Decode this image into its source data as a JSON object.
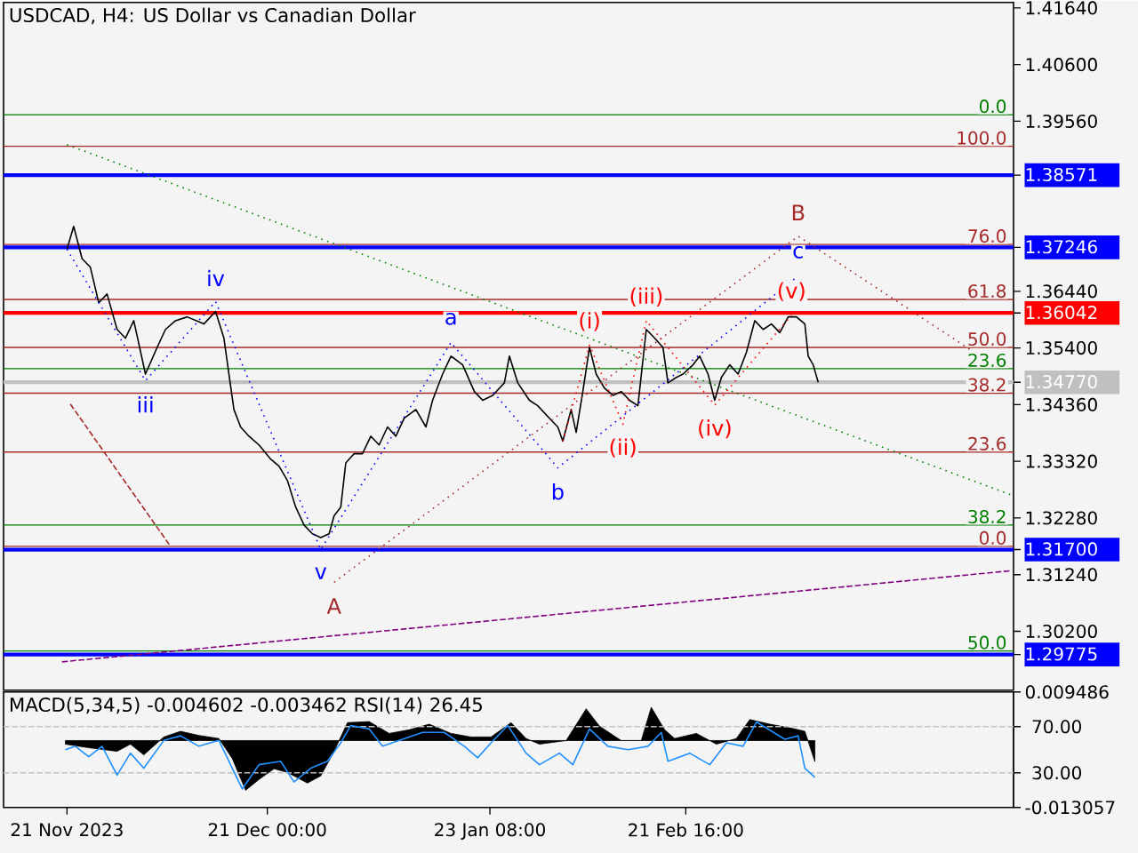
{
  "chart_data": [
    {
      "type": "line",
      "title": "USDCAD, H4:  US Dollar vs Canadian Dollar",
      "xlim": [
        "2023-11-11T12:00",
        "2024-04-10T18:00"
      ],
      "ylim": [
        1.2912,
        1.4174
      ],
      "tick_labels": "y",
      "yticks": [
        {
          "value": 1.29775,
          "label": "1.29775"
        },
        {
          "value": 1.302,
          "label": "1.30200"
        },
        {
          "value": 1.3124,
          "label": "1.31240"
        },
        {
          "value": 1.317,
          "label": "1.31700"
        },
        {
          "value": 1.3228,
          "label": "1.32280"
        },
        {
          "value": 1.3332,
          "label": "1.33320"
        },
        {
          "value": 1.3436,
          "label": "1.34360"
        },
        {
          "value": 1.3477,
          "label": "1.34770"
        },
        {
          "value": 1.354,
          "label": "1.35400"
        },
        {
          "value": 1.36042,
          "label": "1.36042"
        },
        {
          "value": 1.3644,
          "label": "1.36440"
        },
        {
          "value": 1.37246,
          "label": "1.37246"
        },
        {
          "value": 1.38571,
          "label": "1.38571"
        },
        {
          "value": 1.3956,
          "label": "1.39560"
        },
        {
          "value": 1.406,
          "label": "1.40600"
        },
        {
          "value": 1.4164,
          "label": "1.41640"
        }
      ],
      "series": [
        {
          "color": "#000000",
          "line_style": "solid",
          "x": [
            "2023-11-21T00:00",
            "2023-11-22T00:00",
            "2023-11-23T06:00",
            "2023-11-24T12:00",
            "2023-11-25T18:00",
            "2023-11-27T00:00",
            "2023-11-28T12:00",
            "2023-11-29T18:00",
            "2023-12-01T00:00",
            "2023-12-02T18:00",
            "2023-12-04T12:00",
            "2023-12-05T18:00",
            "2023-12-07T06:00",
            "2023-12-09T00:00",
            "2023-12-11T12:00",
            "2023-12-13T06:00",
            "2023-12-14T12:00",
            "2023-12-15T06:00",
            "2023-12-16T00:00",
            "2023-12-17T00:00",
            "2023-12-18T06:00",
            "2023-12-19T18:00",
            "2023-12-21T12:00",
            "2023-12-22T18:00",
            "2023-12-24T00:00",
            "2023-12-25T06:00",
            "2023-12-26T12:00",
            "2023-12-27T18:00",
            "2023-12-29T00:00",
            "2023-12-30T06:00",
            "2023-12-31T00:00",
            "2024-01-01T00:00",
            "2024-01-01T18:00",
            "2024-01-03T00:00",
            "2024-01-04T06:00",
            "2024-01-05T12:00",
            "2024-01-06T18:00",
            "2024-01-08T00:00",
            "2024-01-09T06:00",
            "2024-01-10T12:00",
            "2024-01-12T06:00",
            "2024-01-13T18:00",
            "2024-01-14T18:00",
            "2024-01-16T06:00",
            "2024-01-17T12:00",
            "2024-01-19T06:00",
            "2024-01-21T00:00",
            "2024-01-22T06:00",
            "2024-01-23T18:00",
            "2024-01-25T12:00",
            "2024-01-26T06:00",
            "2024-01-27T12:00",
            "2024-01-29T06:00",
            "2024-01-30T12:00",
            "2024-02-01T06:00",
            "2024-02-02T12:00",
            "2024-02-03T06:00",
            "2024-02-04T12:00",
            "2024-02-05T06:00",
            "2024-02-06T06:00",
            "2024-02-07T06:00",
            "2024-02-08T06:00",
            "2024-02-09T12:00",
            "2024-02-10T18:00",
            "2024-02-12T00:00",
            "2024-02-13T06:00",
            "2024-02-14T12:00",
            "2024-02-15T18:00",
            "2024-02-17T00:00",
            "2024-02-18T06:00",
            "2024-02-19T00:00",
            "2024-02-20T06:00",
            "2024-02-21T06:00",
            "2024-02-22T18:00",
            "2024-02-23T18:00",
            "2024-02-25T00:00",
            "2024-02-26T00:00",
            "2024-02-27T00:00",
            "2024-02-28T06:00",
            "2024-02-29T12:00",
            "2024-03-01T18:00",
            "2024-03-03T00:00",
            "2024-03-04T06:00",
            "2024-03-05T12:00",
            "2024-03-06T18:00",
            "2024-03-08T00:00",
            "2024-03-09T06:00",
            "2024-03-10T12:00",
            "2024-03-11T00:00",
            "2024-03-11T18:00",
            "2024-03-12T12:00"
          ],
          "values": [
            1.3721,
            1.3763,
            1.3704,
            1.3688,
            1.3623,
            1.3639,
            1.3574,
            1.3558,
            1.359,
            1.3492,
            1.3541,
            1.3574,
            1.359,
            1.3597,
            1.3584,
            1.3607,
            1.3558,
            1.3492,
            1.3427,
            1.3395,
            1.3378,
            1.3362,
            1.3336,
            1.3323,
            1.3297,
            1.3248,
            1.3215,
            1.3199,
            1.3192,
            1.3199,
            1.3232,
            1.3248,
            1.3329,
            1.3346,
            1.3346,
            1.3378,
            1.3362,
            1.3395,
            1.3378,
            1.3411,
            1.3427,
            1.3395,
            1.3444,
            1.3492,
            1.3525,
            1.3509,
            1.346,
            1.3444,
            1.3453,
            1.3476,
            1.3525,
            1.3476,
            1.3444,
            1.3434,
            1.3411,
            1.3395,
            1.3369,
            1.3427,
            1.3385,
            1.346,
            1.3541,
            1.3492,
            1.3466,
            1.3453,
            1.346,
            1.3444,
            1.3434,
            1.3574,
            1.3558,
            1.3541,
            1.3476,
            1.3486,
            1.3492,
            1.3509,
            1.3525,
            1.3492,
            1.3444,
            1.3486,
            1.3509,
            1.3492,
            1.3532,
            1.359,
            1.3574,
            1.3584,
            1.3568,
            1.3597,
            1.3597,
            1.3584,
            1.3525,
            1.3509,
            1.3477
          ]
        },
        {
          "color": "#008000",
          "line_style": "dotted",
          "x": [
            "2023-11-21T00:00",
            "2024-04-10T06:00"
          ],
          "values": [
            1.3913,
            1.3271
          ]
        },
        {
          "color": "#800080",
          "line_style": "dashed",
          "x": [
            "2023-11-20T06:00",
            "2024-04-10T06:00"
          ],
          "values": [
            1.2964,
            1.3131
          ]
        },
        {
          "color": "#a52a2a",
          "line_style": "dashed",
          "x": [
            "2023-11-21T12:00",
            "2023-12-06T12:00"
          ],
          "values": [
            1.3437,
            1.3176
          ]
        },
        {
          "color": "#0000ff",
          "line_style": "dotted",
          "x": [
            "2023-11-21T00:00",
            "2023-12-02T18:00",
            "2023-12-13T06:00",
            "2023-12-29T00:00",
            "2024-01-17T12:00",
            "2024-02-02T12:00",
            "2024-03-09T12:00"
          ],
          "values": [
            1.3721,
            1.348,
            1.3625,
            1.317,
            1.355,
            1.332,
            1.3672
          ]
        },
        {
          "color": "#ff0000",
          "line_style": "dotted",
          "x": [
            "2024-02-03T06:00",
            "2024-02-07T06:00",
            "2024-02-12T06:00",
            "2024-02-15T18:00",
            "2024-02-26T00:00",
            "2024-03-08T12:00"
          ],
          "values": [
            1.3369,
            1.3545,
            1.34,
            1.359,
            1.3435,
            1.36
          ]
        },
        {
          "color": "#a52a2a",
          "line_style": "dotted",
          "x": [
            "2023-12-31T00:00",
            "2024-03-09T12:00",
            "2024-04-04T12:00"
          ],
          "values": [
            1.311,
            1.3745,
            1.3535
          ]
        }
      ],
      "ref_lines": [
        {
          "axis": "y",
          "value": 1.3968,
          "color": "#008000"
        },
        {
          "axis": "y",
          "value": 1.391,
          "color": "#a52a2a"
        },
        {
          "axis": "y",
          "value": 1.373,
          "color": "#a52a2a"
        },
        {
          "axis": "y",
          "value": 1.3629,
          "color": "#a52a2a"
        },
        {
          "axis": "y",
          "value": 1.3541,
          "color": "#a52a2a"
        },
        {
          "axis": "y",
          "value": 1.3502,
          "color": "#008000"
        },
        {
          "axis": "y",
          "value": 1.3457,
          "color": "#a52a2a"
        },
        {
          "axis": "y",
          "value": 1.3349,
          "color": "#a52a2a"
        },
        {
          "axis": "y",
          "value": 1.3215,
          "color": "#008000"
        },
        {
          "axis": "y",
          "value": 1.3176,
          "color": "#a52a2a"
        },
        {
          "axis": "y",
          "value": 1.2984,
          "color": "#008000"
        },
        {
          "axis": "y",
          "value": 1.3477,
          "color": "#c0c0c0"
        },
        {
          "axis": "y",
          "value": 1.38571,
          "color": "#0000ff"
        },
        {
          "axis": "y",
          "value": 1.37246,
          "color": "#0000ff"
        },
        {
          "axis": "y",
          "value": 1.36042,
          "color": "#ff0000"
        },
        {
          "axis": "y",
          "value": 1.317,
          "color": "#0000ff"
        },
        {
          "axis": "y",
          "value": 1.29775,
          "color": "#0000ff"
        }
      ],
      "annotations": [
        {
          "text": "0.0",
          "x": "2024-04-10T00:00",
          "y": 1.3968
        },
        {
          "text": "100.0",
          "x": "2024-04-10T00:00",
          "y": 1.391
        },
        {
          "text": "76.0",
          "x": "2024-04-10T00:00",
          "y": 1.373
        },
        {
          "text": "61.8",
          "x": "2024-04-10T00:00",
          "y": 1.3629
        },
        {
          "text": "50.0",
          "x": "2024-04-10T00:00",
          "y": 1.3541
        },
        {
          "text": "23.6",
          "x": "2024-04-10T00:00",
          "y": 1.3502
        },
        {
          "text": "38.2",
          "x": "2024-04-10T00:00",
          "y": 1.3457
        },
        {
          "text": "23.6",
          "x": "2024-04-10T00:00",
          "y": 1.3349
        },
        {
          "text": "38.2",
          "x": "2024-04-10T00:00",
          "y": 1.3215
        },
        {
          "text": "0.0",
          "x": "2024-04-10T00:00",
          "y": 1.3176
        },
        {
          "text": "50.0",
          "x": "2024-04-10T00:00",
          "y": 1.2984
        },
        {
          "text": "iii",
          "x": "2023-12-02T18:00",
          "y": 1.348
        },
        {
          "text": "iv",
          "x": "2023-12-13T06:00",
          "y": 1.3625
        },
        {
          "text": "v",
          "x": "2023-12-29T00:00",
          "y": 1.317
        },
        {
          "text": "A",
          "x": "2023-12-31T00:00",
          "y": 1.311
        },
        {
          "text": "a",
          "x": "2024-01-17T12:00",
          "y": 1.355
        },
        {
          "text": "b",
          "x": "2024-02-02T12:00",
          "y": 1.332
        },
        {
          "text": "(i)",
          "x": "2024-02-07T06:00",
          "y": 1.3545
        },
        {
          "text": "(ii)",
          "x": "2024-02-12T06:00",
          "y": 1.34
        },
        {
          "text": "(iii)",
          "x": "2024-02-15T18:00",
          "y": 1.359
        },
        {
          "text": "(iv)",
          "x": "2024-02-26T00:00",
          "y": 1.3435
        },
        {
          "text": "(v)",
          "x": "2024-03-08T12:00",
          "y": 1.36
        },
        {
          "text": "c",
          "x": "2024-03-09T12:00",
          "y": 1.3672
        },
        {
          "text": "B",
          "x": "2024-03-09T12:00",
          "y": 1.3745
        }
      ]
    },
    {
      "type": "area",
      "title": "MACD(5,34,5) -0.004602 -0.003462 RSI(14) 26.45",
      "xlim": [
        "2023-11-11T12:00",
        "2024-04-10T18:00"
      ],
      "xticks": [
        {
          "value": "2023-11-21T00:00",
          "label": "21 Nov 2023"
        },
        {
          "value": "2023-12-21T00:00",
          "label": "21 Dec 00:00"
        },
        {
          "value": "2024-01-23T08:00",
          "label": "23 Jan 08:00"
        },
        {
          "value": "2024-02-21T16:00",
          "label": "21 Feb 16:00"
        }
      ],
      "ylim": [
        -0.013057,
        0.009486
      ],
      "yticks": [
        -0.013057,
        0.009486
      ],
      "y2lim": [
        0,
        100
      ],
      "y2ticks": [
        {
          "value": 30,
          "label": "30.00"
        },
        {
          "value": 70,
          "label": "70.00"
        }
      ],
      "series": [
        {
          "color": "#000000",
          "x": [
            "2023-11-20T18:00",
            "2023-11-24T06:00",
            "2023-11-28T12:00",
            "2023-11-30T12:00",
            "2023-12-02T12:00",
            "2023-12-05T12:00",
            "2023-12-08T00:00",
            "2023-12-10T18:00",
            "2023-12-13T18:00",
            "2023-12-15T18:00",
            "2023-12-17T18:00",
            "2023-12-19T18:00",
            "2023-12-22T00:00",
            "2023-12-24T00:00",
            "2023-12-27T00:00",
            "2023-12-29T00:00",
            "2023-12-31T00:00",
            "2024-01-02T00:00",
            "2024-01-05T06:00",
            "2024-01-08T06:00",
            "2024-01-11T06:00",
            "2024-01-14T06:00",
            "2024-01-17T12:00",
            "2024-01-20T12:00",
            "2024-01-23T12:00",
            "2024-01-26T12:00",
            "2024-01-28T18:00",
            "2024-01-30T18:00",
            "2024-02-03T18:00",
            "2024-02-06T18:00",
            "2024-02-08T18:00",
            "2024-02-12T00:00",
            "2024-02-15T00:00",
            "2024-02-16T12:00",
            "2024-02-18T12:00",
            "2024-02-20T00:00",
            "2024-02-23T06:00",
            "2024-02-26T06:00",
            "2024-02-29T06:00",
            "2024-03-02T06:00",
            "2024-03-05T06:00",
            "2024-03-08T12:00",
            "2024-03-10T12:00",
            "2024-03-12T00:00"
          ],
          "values": [
            -0.0007,
            -0.0014,
            -0.0021,
            -0.0007,
            -0.0028,
            0.0007,
            0.0018,
            0.001,
            0.0004,
            -0.0035,
            -0.0097,
            -0.0076,
            -0.0055,
            -0.0062,
            -0.0083,
            -0.0069,
            -0.0021,
            0.0035,
            0.0037,
            0.0014,
            0.0021,
            0.0032,
            0.0014,
            0.0007,
            0.0007,
            0.0035,
            0.0004,
            -0.0007,
            0,
            0.0062,
            0.0028,
            0,
            0,
            0.0065,
            0.0021,
            0.0004,
            0.0014,
            -0.0007,
            0.0004,
            0.0041,
            0.0032,
            0.0024,
            0.0018,
            -0.0041
          ]
        },
        {
          "type": "line",
          "axis": "y2",
          "color": "#1e90ff",
          "line_style": "solid",
          "x": [
            "2023-11-20T18:00",
            "2023-11-22T06:00",
            "2023-11-24T06:00",
            "2023-11-26T06:00",
            "2023-11-28T12:00",
            "2023-11-30T12:00",
            "2023-12-02T12:00",
            "2023-12-05T12:00",
            "2023-12-08T00:00",
            "2023-12-10T18:00",
            "2023-12-13T18:00",
            "2023-12-15T18:00",
            "2023-12-17T06:00",
            "2023-12-19T18:00",
            "2023-12-23T00:00",
            "2023-12-25T00:00",
            "2023-12-27T12:00",
            "2023-12-30T00:00",
            "2024-01-01T00:00",
            "2024-01-02T12:00",
            "2024-01-05T06:00",
            "2024-01-07T06:00",
            "2024-01-10T06:00",
            "2024-01-13T06:00",
            "2024-01-16T12:00",
            "2024-01-19T12:00",
            "2024-01-21T12:00",
            "2024-01-23T12:00",
            "2024-01-26T00:00",
            "2024-01-28T18:00",
            "2024-01-30T18:00",
            "2024-02-02T18:00",
            "2024-02-04T18:00",
            "2024-02-07T06:00",
            "2024-02-10T00:00",
            "2024-02-13T00:00",
            "2024-02-16T00:00",
            "2024-02-18T00:00",
            "2024-02-19T00:00",
            "2024-02-22T06:00",
            "2024-02-25T06:00",
            "2024-02-27T18:00",
            "2024-03-01T06:00",
            "2024-03-03T06:00",
            "2024-03-07T12:00",
            "2024-03-09T12:00",
            "2024-03-10T12:00",
            "2024-03-12T00:00"
          ],
          "values": [
            50,
            53,
            44,
            53,
            28,
            47,
            34,
            58,
            62,
            53,
            58,
            34,
            16,
            37,
            40,
            22,
            34,
            40,
            56,
            71,
            68,
            53,
            59,
            65,
            65,
            53,
            43,
            56,
            71,
            47,
            37,
            47,
            37,
            68,
            53,
            50,
            53,
            65,
            40,
            47,
            37,
            56,
            53,
            74,
            59,
            62,
            34,
            26
          ]
        }
      ],
      "ref_lines": [
        {
          "axis": "y2",
          "value": 70,
          "color": "#c0c0c0",
          "line_style": "dashed"
        },
        {
          "axis": "y2",
          "value": 30,
          "color": "#c0c0c0",
          "line_style": "dashed"
        }
      ]
    }
  ]
}
